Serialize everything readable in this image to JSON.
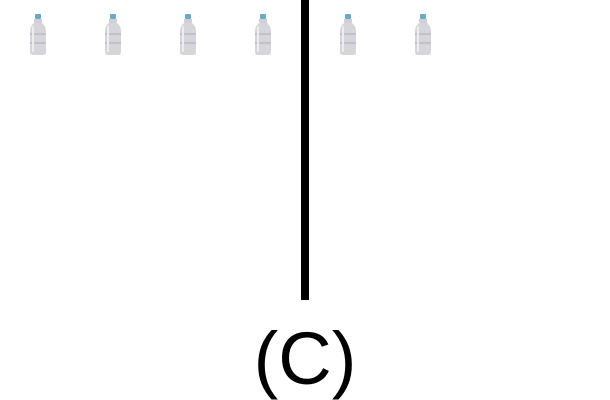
{
  "option_label": "(C)",
  "divider": {
    "color": "#000000"
  },
  "bottles": {
    "left_group_count": 4,
    "right_group_count": 2,
    "icon": "water-bottle-icon",
    "cap_color": "#6aa9c6",
    "body_color": "#d6d6da"
  }
}
